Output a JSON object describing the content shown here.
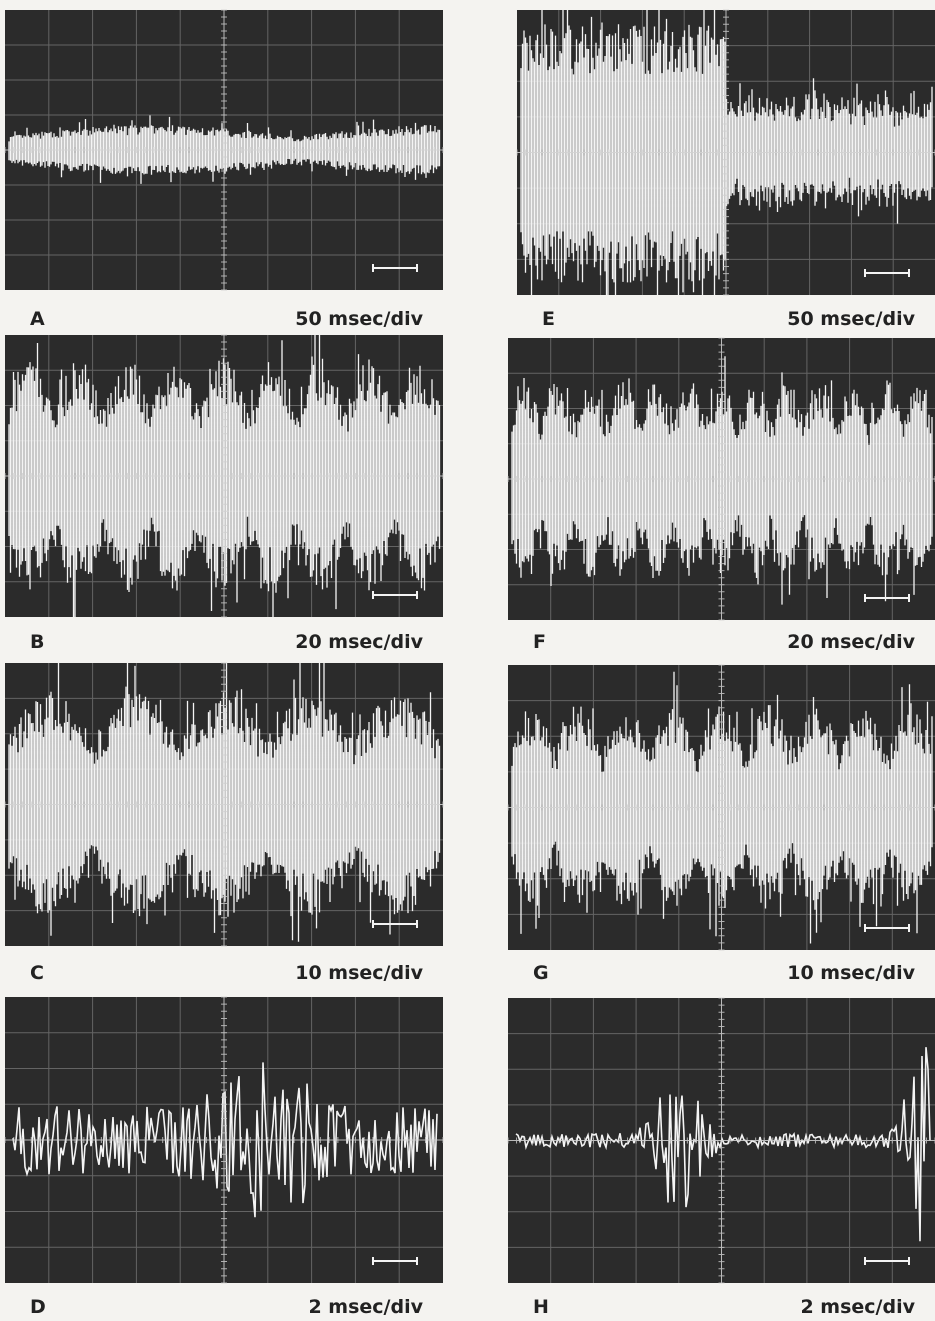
{
  "panels": [
    {
      "label": "A",
      "scale": "50 msec/div"
    },
    {
      "label": "B",
      "scale": "20 msec/div"
    },
    {
      "label": "C",
      "scale": "10 msec/div"
    },
    {
      "label": "D",
      "scale": "2 msec/div"
    },
    {
      "label": "E",
      "scale": "50 msec/div"
    },
    {
      "label": "F",
      "scale": "20 msec/div"
    },
    {
      "label": "G",
      "scale": "10 msec/div"
    },
    {
      "label": "H",
      "scale": "2 msec/div"
    }
  ]
}
